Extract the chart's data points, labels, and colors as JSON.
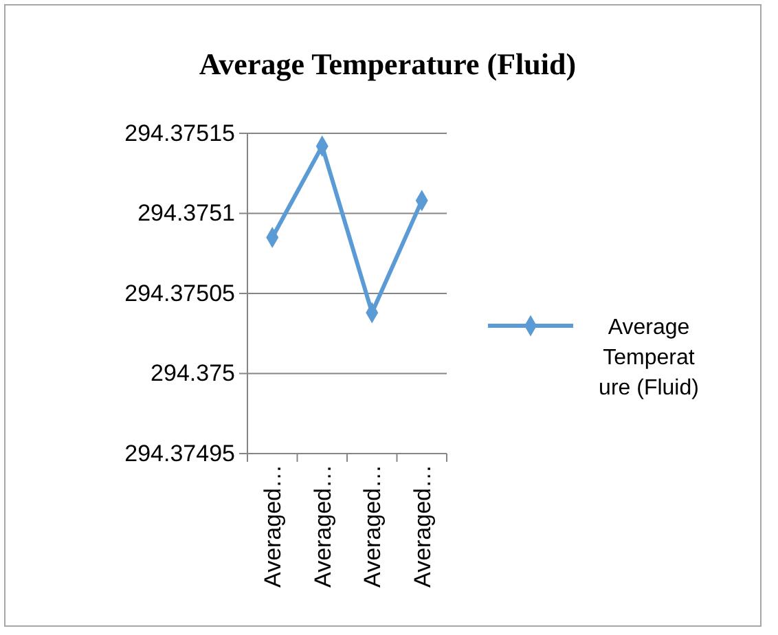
{
  "chart_data": {
    "type": "line",
    "title": "Average Temperature (Fluid)",
    "categories": [
      "Averaged…",
      "Averaged…",
      "Averaged…",
      "Averaged…"
    ],
    "series": [
      {
        "name": "Average Temperature (Fluid)",
        "color": "#5b9bd5",
        "values": [
          294.375085,
          294.375142,
          294.375038,
          294.375108
        ]
      }
    ],
    "ylim": [
      294.37495,
      294.37515
    ],
    "yticks": [
      294.37495,
      294.375,
      294.37505,
      294.3751,
      294.37515
    ],
    "grid": "y",
    "legend": "right",
    "marker": "diamond",
    "line_style": "solid"
  }
}
